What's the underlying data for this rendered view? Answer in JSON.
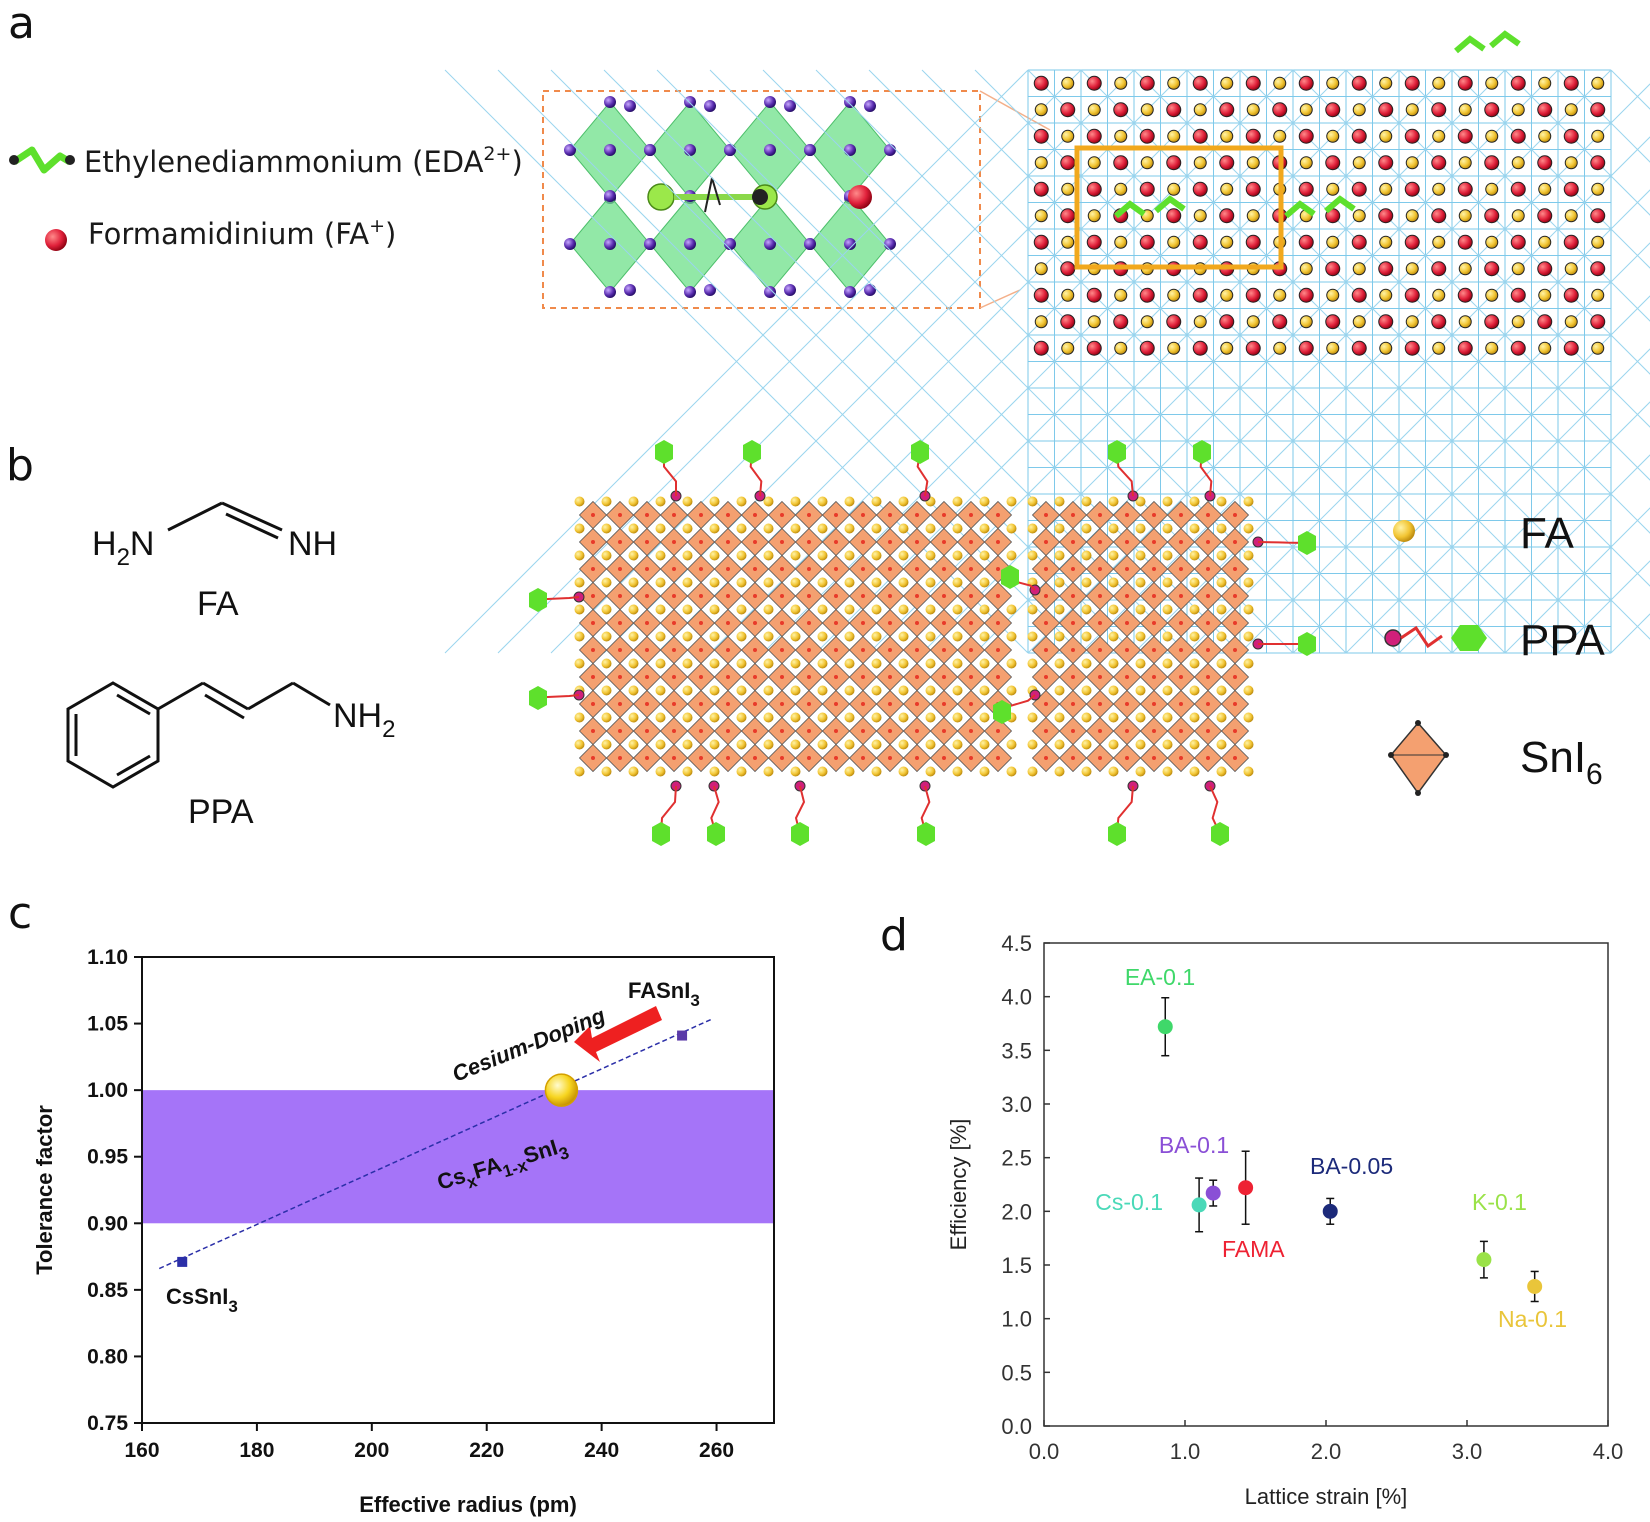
{
  "panel_a": {
    "label": "a",
    "legend": [
      {
        "prefix": "Ethylenediammonium (EDA",
        "sup": "2+",
        "suffix": ")"
      },
      {
        "prefix": "Formamidinium (FA",
        "sup": "+",
        "suffix": ")"
      }
    ]
  },
  "panel_b": {
    "label": "b",
    "fa_left": "H",
    "fa_left_sub": "2",
    "fa_left_end": "N",
    "fa_right": "NH",
    "fa_name": "FA",
    "ppa_amine": "NH",
    "ppa_amine_sub": "2",
    "ppa_name": "PPA",
    "legend": {
      "fa": "FA",
      "ppa": "PPA",
      "sni6": "SnI",
      "sni6_sub": "6"
    }
  },
  "colors": {
    "octahedron_green": "#6ee08a",
    "octahedron_orange": "#f4a070",
    "fa_red": "#e0203a",
    "fa_yellow": "#f2c533",
    "ppa_green": "#5ee02c",
    "band_purple": "#a574f8",
    "highlight_orange": "#f1a81d"
  },
  "panel_c": {
    "label": "c",
    "annotation_fasni3": {
      "main": "FASnI",
      "sub": "3"
    },
    "annotation_cssni3": {
      "main": "CsSnI",
      "sub": "3"
    },
    "annotation_doping": "Cesium-Doping",
    "annotation_mixed": {
      "cs": "Cs",
      "x1": "x",
      "fa": "FA",
      "x2": "1-x",
      "sn": "SnI",
      "three": "3"
    },
    "chart_data": {
      "type": "scatter",
      "xlabel": "Effective radius (pm)",
      "ylabel": "Tolerance factor",
      "xlim": [
        160,
        270
      ],
      "ylim": [
        0.75,
        1.1
      ],
      "xticks": [
        160,
        180,
        200,
        220,
        240,
        260
      ],
      "yticks": [
        "0.75",
        "0.80",
        "0.85",
        "0.90",
        "0.95",
        "1.00",
        "1.05",
        "1.10"
      ],
      "points": [
        {
          "name": "CsSnI3",
          "x": 167,
          "y": 0.871
        },
        {
          "name": "FASnI3",
          "x": 254,
          "y": 1.041
        },
        {
          "name": "CsxFA1-xSnI3",
          "x": 233,
          "y": 1.0
        }
      ],
      "fit_line": [
        [
          163,
          0.866
        ],
        [
          259,
          1.053
        ]
      ],
      "band": [
        0.9,
        1.0
      ]
    }
  },
  "panel_d": {
    "label": "d",
    "chart_data": {
      "type": "scatter",
      "xlabel": "Lattice strain [%]",
      "ylabel": "Efficiency [%]",
      "xlim": [
        0.0,
        4.0
      ],
      "ylim": [
        0.0,
        4.5
      ],
      "xticks": [
        "0.0",
        "1.0",
        "2.0",
        "3.0",
        "4.0"
      ],
      "yticks": [
        "0.0",
        "0.5",
        "1.0",
        "1.5",
        "2.0",
        "2.5",
        "3.0",
        "3.5",
        "4.0",
        "4.5"
      ],
      "points": [
        {
          "label": "EA-0.1",
          "x": 0.86,
          "y": 3.72,
          "err": 0.27,
          "color": "#3fd86a"
        },
        {
          "label": "Cs-0.1",
          "x": 1.1,
          "y": 2.06,
          "err": 0.25,
          "color": "#4ad9b8"
        },
        {
          "label": "BA-0.1",
          "x": 1.2,
          "y": 2.17,
          "err": 0.12,
          "color": "#8a4fd6"
        },
        {
          "label": "FAMA",
          "x": 1.43,
          "y": 2.22,
          "err": 0.34,
          "color": "#ee2233"
        },
        {
          "label": "BA-0.05",
          "x": 2.03,
          "y": 2.0,
          "err": 0.12,
          "color": "#1c2a7a"
        },
        {
          "label": "K-0.1",
          "x": 3.12,
          "y": 1.55,
          "err": 0.17,
          "color": "#9ae248"
        },
        {
          "label": "Na-0.1",
          "x": 3.48,
          "y": 1.3,
          "err": 0.14,
          "color": "#e9c53a"
        }
      ]
    }
  }
}
